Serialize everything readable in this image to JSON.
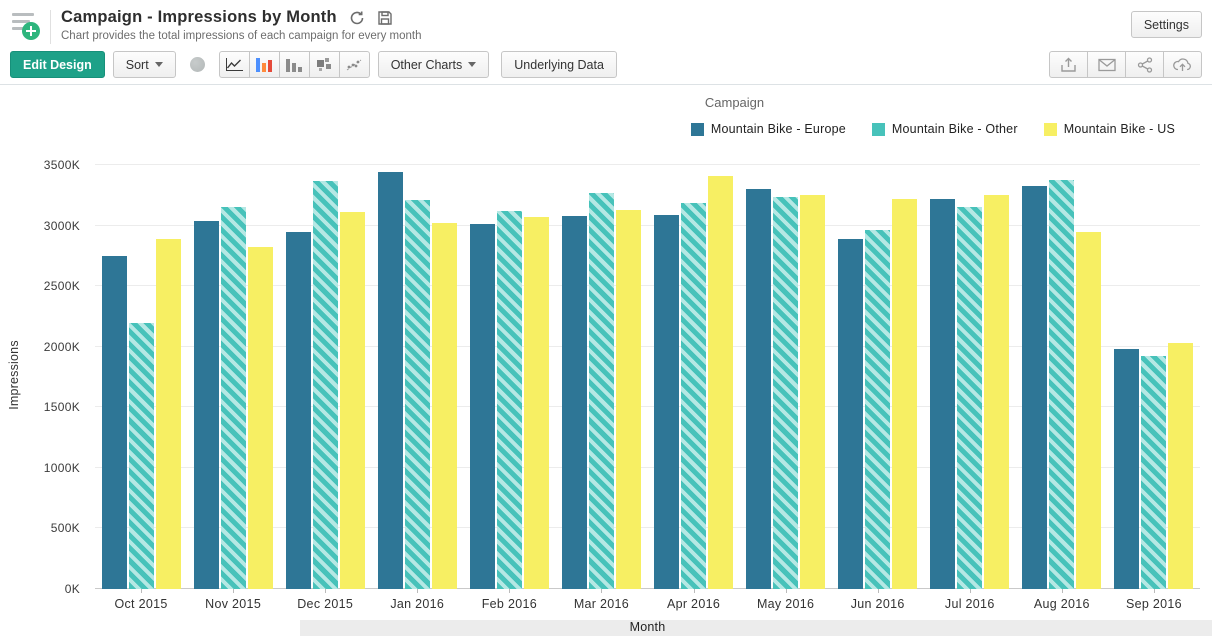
{
  "header": {
    "title": "Campaign - Impressions by Month",
    "subtitle": "Chart provides the total impressions of each campaign for every month",
    "settings_label": "Settings"
  },
  "toolbar": {
    "edit_design_label": "Edit Design",
    "sort_label": "Sort",
    "other_charts_label": "Other Charts",
    "underlying_data_label": "Underlying Data",
    "chart_type_icons": [
      "pie-chart",
      "line-chart",
      "bar-chart-colored",
      "bar-chart-gray",
      "bubble-chart",
      "scatter-chart"
    ],
    "share_icons": [
      "export",
      "email",
      "share",
      "publish-cloud"
    ]
  },
  "legend": {
    "title": "Campaign"
  },
  "colors": {
    "accent_green": "#1ea188",
    "app_icon_green": "#2eb57d",
    "series_europe": "#2e7696",
    "series_other": "#47c2ba",
    "series_other_stripe": "#b5e8e4",
    "series_us": "#f7ef63",
    "gridline": "#ececec"
  },
  "chart_data": {
    "type": "bar",
    "title": "Campaign - Impressions by Month",
    "xlabel": "Month",
    "ylabel": "Impressions",
    "ylim": [
      0,
      3500
    ],
    "values_unit": "K",
    "grid": true,
    "legend_position": "top-right",
    "categories": [
      "Oct 2015",
      "Nov 2015",
      "Dec 2015",
      "Jan 2016",
      "Feb 2016",
      "Mar 2016",
      "Apr 2016",
      "May 2016",
      "Jun 2016",
      "Jul 2016",
      "Aug 2016",
      "Sep 2016"
    ],
    "y_ticks": [
      {
        "value": 0,
        "label": "0K"
      },
      {
        "value": 500,
        "label": "500K"
      },
      {
        "value": 1000,
        "label": "1000K"
      },
      {
        "value": 1500,
        "label": "1500K"
      },
      {
        "value": 2000,
        "label": "2000K"
      },
      {
        "value": 2500,
        "label": "2500K"
      },
      {
        "value": 3000,
        "label": "3000K"
      },
      {
        "value": 3500,
        "label": "3500K"
      }
    ],
    "series": [
      {
        "name": "Mountain Bike - Europe",
        "color": "#2e7696",
        "hatched": false,
        "values": [
          2750,
          3040,
          2950,
          3440,
          3010,
          3080,
          3090,
          3300,
          2890,
          3220,
          3330,
          1980
        ]
      },
      {
        "name": "Mountain Bike - Other",
        "color": "#47c2ba",
        "hatched": true,
        "stripe_color": "#b5e8e4",
        "values": [
          2200,
          3150,
          3370,
          3210,
          3120,
          3270,
          3190,
          3240,
          2960,
          3150,
          3380,
          1920
        ]
      },
      {
        "name": "Mountain Bike - US",
        "color": "#f7ef63",
        "hatched": false,
        "values": [
          2890,
          2820,
          3110,
          3020,
          3070,
          3130,
          3410,
          3250,
          3220,
          3250,
          2950,
          2030
        ]
      }
    ]
  }
}
